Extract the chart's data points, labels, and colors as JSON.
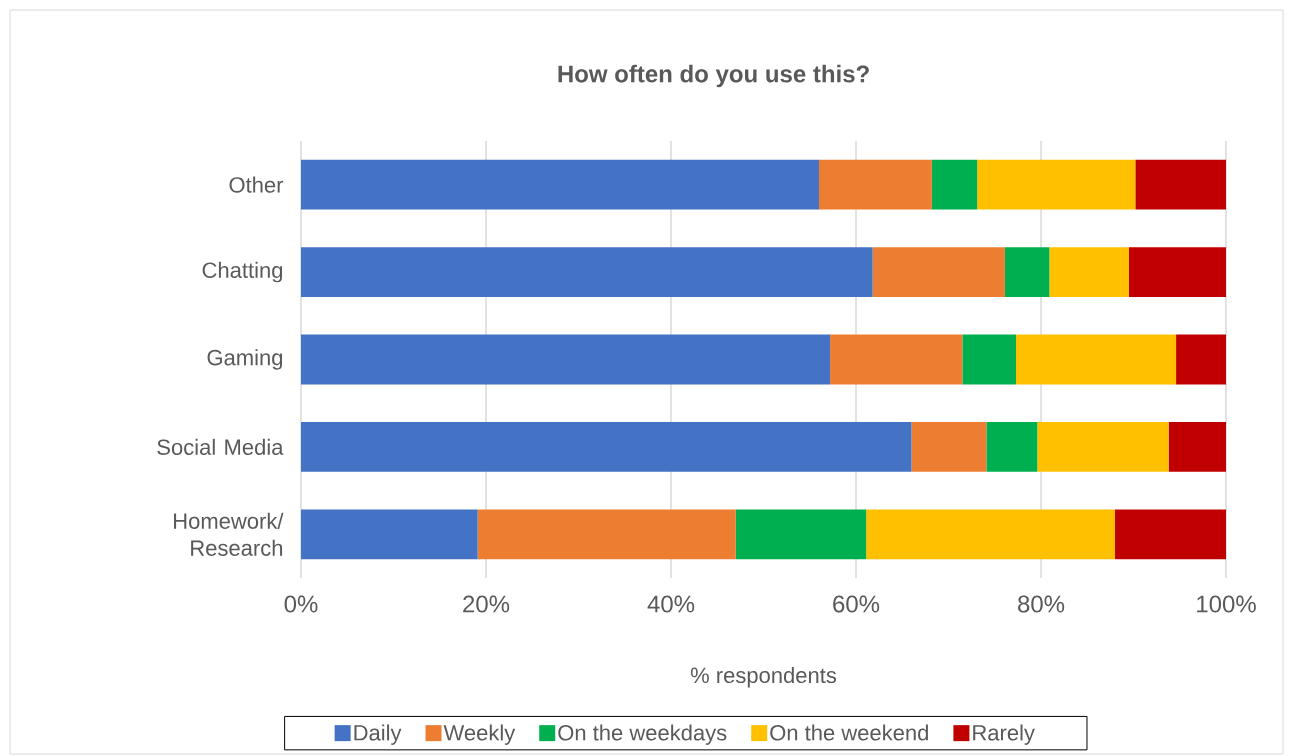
{
  "chart_data": {
    "type": "bar",
    "orientation": "horizontal",
    "stacked": true,
    "title": "How often do you use this?",
    "xlabel": "% respondents",
    "categories": [
      "Other",
      "Chatting",
      "Gaming",
      "Social Media",
      "Homework/ Research"
    ],
    "series": [
      {
        "name": "Daily",
        "color": "#4472c4",
        "values": [
          56.0,
          61.8,
          57.2,
          66.0,
          19.1
        ]
      },
      {
        "name": "Weekly",
        "color": "#ed7d31",
        "values": [
          12.2,
          14.3,
          14.3,
          8.1,
          27.9
        ]
      },
      {
        "name": "On the weekdays",
        "color": "#00b050",
        "values": [
          4.9,
          4.8,
          5.8,
          5.5,
          14.1
        ]
      },
      {
        "name": "On the weekend",
        "color": "#ffc000",
        "values": [
          17.1,
          8.6,
          17.3,
          14.2,
          26.9
        ]
      },
      {
        "name": "Rarely",
        "color": "#c00000",
        "values": [
          9.8,
          10.5,
          5.4,
          6.2,
          12.0
        ]
      }
    ],
    "xlim": [
      0,
      100
    ],
    "xticks": [
      {
        "value": 0,
        "label": "0%"
      },
      {
        "value": 20,
        "label": "20%"
      },
      {
        "value": 40,
        "label": "40%"
      },
      {
        "value": 60,
        "label": "60%"
      },
      {
        "value": 80,
        "label": "80%"
      },
      {
        "value": 100,
        "label": "100%"
      }
    ],
    "grid": "x",
    "legend": "bottom"
  }
}
